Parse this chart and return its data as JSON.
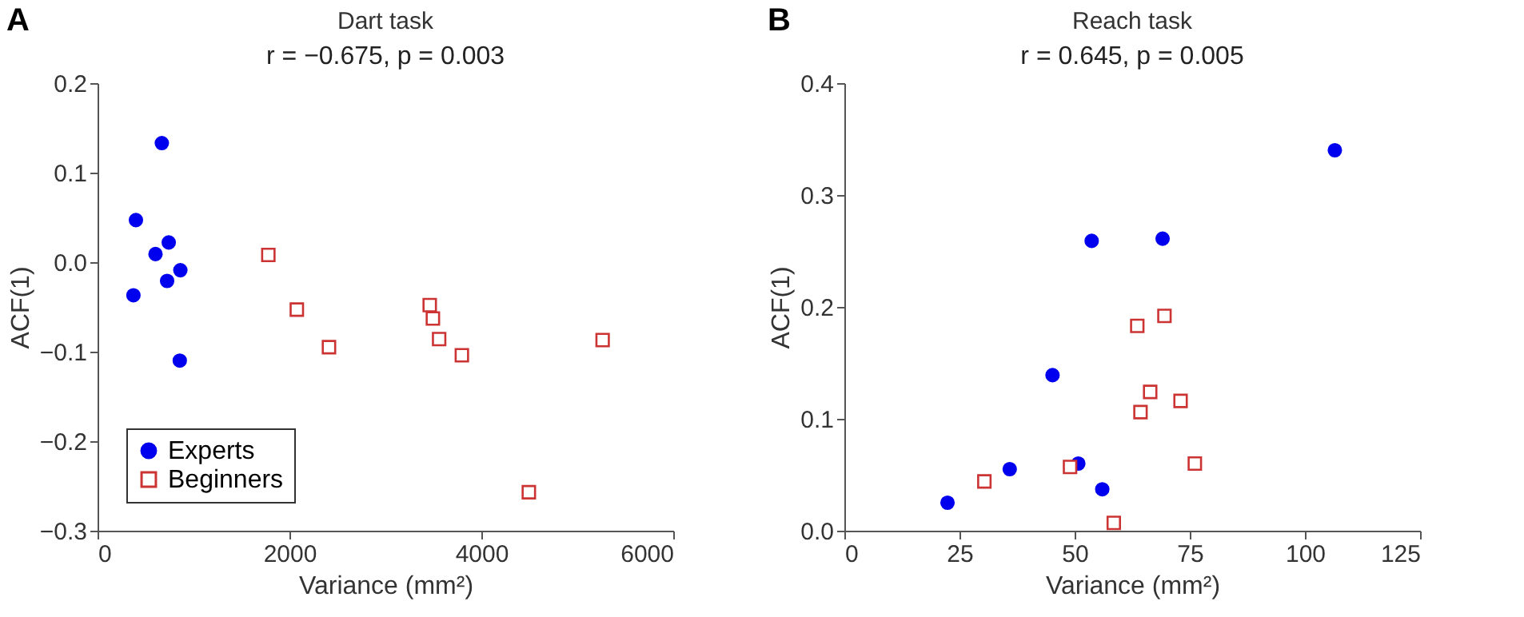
{
  "chart_data": [
    {
      "type": "scatter",
      "title": "Dart task",
      "subtitle": "r = −0.675, p = 0.003",
      "xlabel": "Variance (mm²)",
      "ylabel": "ACF(1)",
      "annotations": [
        "A"
      ],
      "xlim": [
        0,
        6000
      ],
      "xticks": [
        0,
        2000,
        4000,
        6000
      ],
      "ylim": [
        -0.3,
        0.2
      ],
      "yticks": [
        {
          "value": -0.3,
          "label": "−0.3"
        },
        {
          "value": -0.2,
          "label": "−0.2"
        },
        {
          "value": -0.1,
          "label": "−0.1"
        },
        {
          "value": 0,
          "label": "0.0"
        },
        0.1,
        0.2
      ],
      "grid": false,
      "legend": "bottom left",
      "series": [
        {
          "name": "Experts",
          "color": "#0000ee",
          "marker": "circle",
          "x": [
            670,
            400,
            742,
            604,
            863,
            725,
            374,
            857
          ],
          "values": [
            0.133,
            0.047,
            0.022,
            0.009,
            -0.009,
            -0.021,
            -0.037,
            -0.11
          ]
        },
        {
          "name": "Beginners",
          "color": "#cc3333",
          "marker": "square",
          "x": [
            1780,
            2077,
            2412,
            3462,
            3495,
            3560,
            3797,
            5264,
            4495
          ],
          "values": [
            0.008,
            -0.053,
            -0.095,
            -0.048,
            -0.063,
            -0.086,
            -0.104,
            -0.087,
            -0.257
          ]
        }
      ]
    },
    {
      "type": "scatter",
      "title": "Reach task",
      "subtitle": "r = 0.645, p = 0.005",
      "xlabel": "Variance (mm²)",
      "ylabel": "ACF(1)",
      "annotations": [
        "B"
      ],
      "xlim": [
        0,
        125
      ],
      "xticks": [
        0,
        25,
        50,
        75,
        100,
        125
      ],
      "ylim": [
        0,
        0.4
      ],
      "yticks": [
        {
          "value": 0,
          "label": "0.0"
        },
        0.1,
        0.2,
        0.3,
        0.4
      ],
      "grid": false,
      "series": [
        {
          "color": "#0000ee",
          "marker": "circle",
          "x": [
            22.4,
            35.9,
            45.2,
            50.8,
            56.0,
            53.7,
            69.1,
            106.5
          ],
          "values": [
            0.025,
            0.055,
            0.139,
            0.06,
            0.037,
            0.259,
            0.261,
            0.34
          ]
        },
        {
          "color": "#cc3333",
          "marker": "square",
          "x": [
            30.4,
            49.0,
            58.5,
            63.6,
            69.5,
            66.4,
            64.3,
            73.0,
            76.1
          ],
          "values": [
            0.044,
            0.057,
            0.007,
            0.183,
            0.192,
            0.124,
            0.106,
            0.116,
            0.06
          ]
        }
      ]
    }
  ]
}
